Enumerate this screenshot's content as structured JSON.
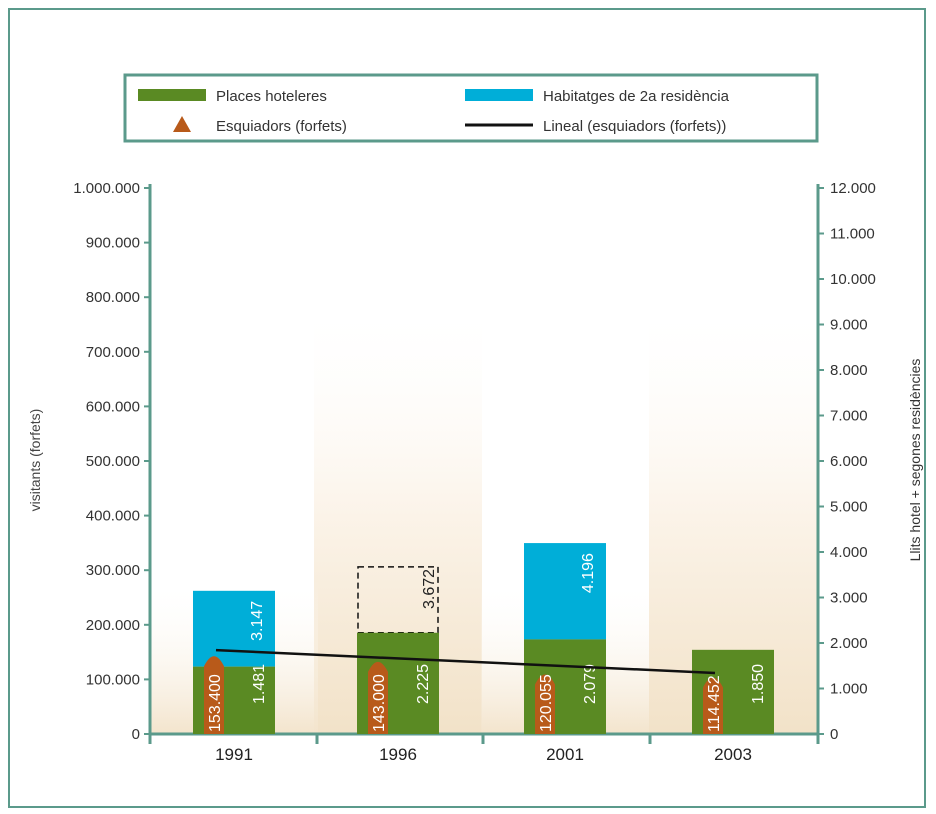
{
  "chart_data": {
    "type": "bar",
    "categories": [
      "1991",
      "1996",
      "2001",
      "2003"
    ],
    "series": [
      {
        "name": "Places hoteleres",
        "axis": "right",
        "values": [
          1481,
          2225,
          2079,
          1850
        ],
        "value_labels": [
          "1.481",
          "2.225",
          "2.079",
          "1.850"
        ],
        "color": "#5a8a23"
      },
      {
        "name": "Habitatges de 2a residència",
        "axis": "right",
        "values": [
          3147,
          3672,
          4196,
          null
        ],
        "value_labels": [
          "3.147",
          "3.672",
          "4.196",
          ""
        ],
        "color": "#00aed8",
        "dashed_outline_for": [
          "1996"
        ]
      },
      {
        "name": "Esquiadors (forfets)",
        "axis": "left",
        "values": [
          153400,
          143000,
          120055,
          114452
        ],
        "value_labels": [
          "153.400",
          "143.000",
          "120.055",
          "114.452"
        ],
        "color": "#b85a1a"
      },
      {
        "name": "Lineal (esquiadors (forfets))",
        "axis": "left",
        "type": "trendline",
        "color": "#111111"
      }
    ],
    "ylabel_left": "visitants (forfets)",
    "ylabel_right": "Llits hotel + segones residències",
    "ylim_left": [
      0,
      1000000
    ],
    "ylim_right": [
      0,
      12000
    ],
    "yticks_left": [
      "0",
      "100.000",
      "200.000",
      "300.000",
      "400.000",
      "500.000",
      "600.000",
      "700.000",
      "800.000",
      "900.000",
      "1.000.000"
    ],
    "yticks_right": [
      "0",
      "1.000",
      "2.000",
      "3.000",
      "4.000",
      "5.000",
      "6.000",
      "7.000",
      "8.000",
      "9.000",
      "10.000",
      "11.000",
      "12.000"
    ],
    "legend_position": "top",
    "colors": {
      "frame": "#5b9a8b",
      "axis": "#5b9a8b",
      "background_band": "#f7eedf"
    }
  }
}
